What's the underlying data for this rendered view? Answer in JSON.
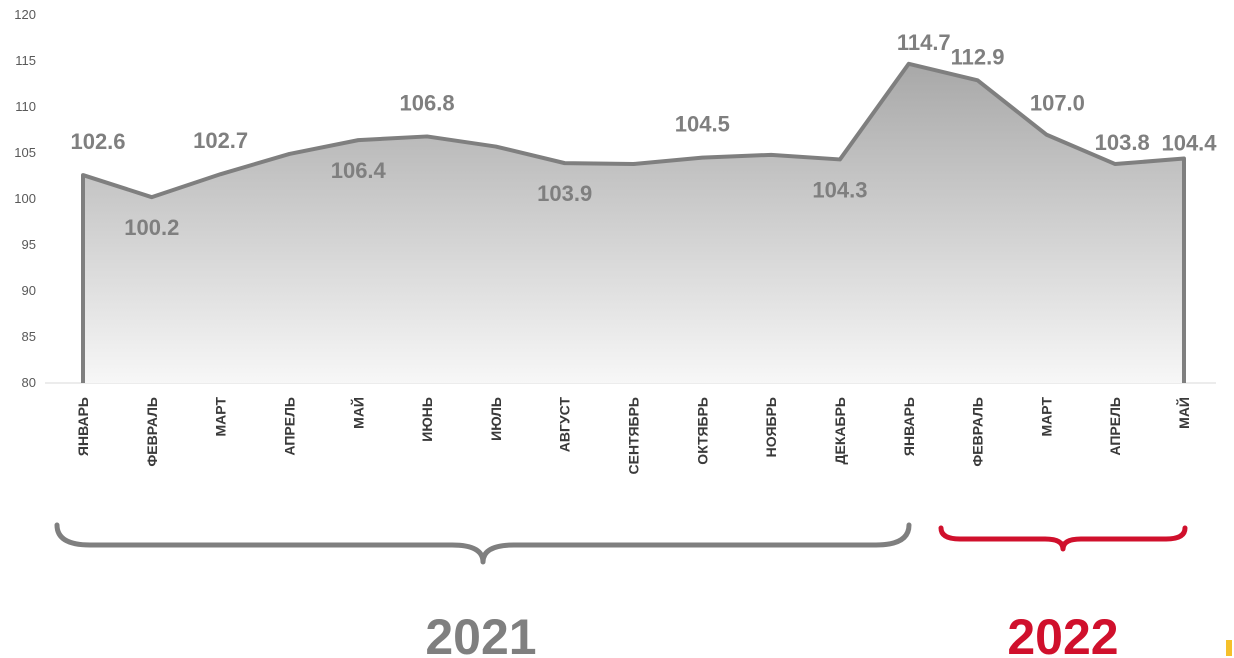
{
  "chart_data": {
    "type": "area",
    "categories": [
      "ЯНВАРЬ",
      "ФЕВРАЛЬ",
      "МАРТ",
      "АПРЕЛЬ",
      "МАЙ",
      "ИЮНЬ",
      "ИЮЛЬ",
      "АВГУСТ",
      "СЕНТЯБРЬ",
      "ОКТЯБРЬ",
      "НОЯБРЬ",
      "ДЕКАБРЬ",
      "ЯНВАРЬ",
      "ФЕВРАЛЬ",
      "МАРТ",
      "АПРЕЛЬ",
      "МАЙ"
    ],
    "series": [
      {
        "values": [
          102.6,
          100.2,
          102.7,
          104.9,
          106.4,
          106.8,
          105.7,
          103.9,
          103.8,
          104.5,
          104.8,
          104.3,
          114.7,
          112.9,
          107.0,
          103.8,
          104.4
        ]
      }
    ],
    "data_labels": [
      "102.6",
      "100.2",
      "102.7",
      "",
      "106.4",
      "106.8",
      "",
      "103.9",
      "",
      "104.5",
      "",
      "104.3",
      "114.7",
      "112.9",
      "107.0",
      "103.8",
      "104.4"
    ],
    "ylim": [
      80,
      120
    ],
    "yticks": [
      "80",
      "85",
      "90",
      "95",
      "100",
      "105",
      "110",
      "115",
      "120"
    ],
    "title": "",
    "xlabel": "",
    "ylabel": "",
    "grid": false,
    "legend": "none",
    "groups": [
      {
        "label": "2021",
        "color": "#7f7f7f"
      },
      {
        "label": "2022",
        "color": "#d0102c"
      }
    ],
    "colors": {
      "line": "#7f7f7f",
      "fill_top": "#a8a8a8",
      "fill_bottom": "#f7f7f7",
      "axis": "#d9d9d9",
      "accent": "#f5c02a"
    }
  }
}
